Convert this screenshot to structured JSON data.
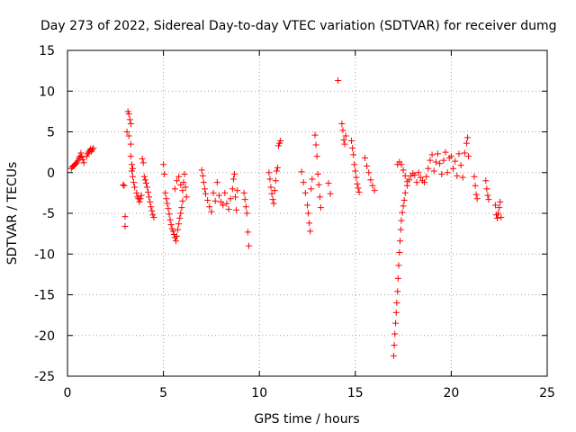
{
  "chart_data": {
    "type": "scatter",
    "title": "Day 273 of 2022, Sidereal Day-to-day VTEC variation (SDTVAR) for receiver dumg",
    "xlabel": "GPS time / hours",
    "ylabel": "SDTVAR / TECUs",
    "xlim": [
      0,
      25
    ],
    "ylim": [
      -25,
      15
    ],
    "xticks": [
      0,
      5,
      10,
      15,
      20,
      25
    ],
    "yticks": [
      -25,
      -20,
      -15,
      -10,
      -5,
      0,
      5,
      10,
      15
    ],
    "grid": true,
    "marker": "+",
    "color": "#ff0000",
    "series": [
      {
        "name": "SDTVAR",
        "points": [
          [
            0.2,
            0.5
          ],
          [
            0.25,
            0.7
          ],
          [
            0.3,
            0.8
          ],
          [
            0.35,
            0.9
          ],
          [
            0.4,
            1.0
          ],
          [
            0.45,
            1.1
          ],
          [
            0.5,
            1.3
          ],
          [
            0.55,
            1.5
          ],
          [
            0.6,
            1.8
          ],
          [
            0.65,
            2.0
          ],
          [
            0.7,
            2.4
          ],
          [
            0.75,
            1.9
          ],
          [
            0.8,
            1.6
          ],
          [
            0.85,
            1.2
          ],
          [
            1.0,
            2.0
          ],
          [
            1.05,
            2.3
          ],
          [
            1.1,
            2.5
          ],
          [
            1.15,
            2.7
          ],
          [
            1.2,
            2.9
          ],
          [
            1.25,
            2.6
          ],
          [
            1.3,
            2.8
          ],
          [
            1.35,
            3.0
          ],
          [
            2.9,
            -1.5
          ],
          [
            2.95,
            -1.6
          ],
          [
            3.0,
            -5.4
          ],
          [
            3.0,
            -6.6
          ],
          [
            3.1,
            5.0
          ],
          [
            3.15,
            7.5
          ],
          [
            3.2,
            7.2
          ],
          [
            3.2,
            4.5
          ],
          [
            3.25,
            6.5
          ],
          [
            3.3,
            6.0
          ],
          [
            3.3,
            3.5
          ],
          [
            3.3,
            2.0
          ],
          [
            3.35,
            1.0
          ],
          [
            3.35,
            0.2
          ],
          [
            3.4,
            0.5
          ],
          [
            3.4,
            -0.5
          ],
          [
            3.45,
            -1.2
          ],
          [
            3.5,
            -1.8
          ],
          [
            3.6,
            -2.5
          ],
          [
            3.65,
            -3.0
          ],
          [
            3.7,
            -3.2
          ],
          [
            3.75,
            -3.6
          ],
          [
            3.8,
            -3.2
          ],
          [
            3.85,
            -2.8
          ],
          [
            3.9,
            1.7
          ],
          [
            3.95,
            1.2
          ],
          [
            4.0,
            -0.5
          ],
          [
            4.05,
            -0.9
          ],
          [
            4.1,
            -1.3
          ],
          [
            4.15,
            -1.8
          ],
          [
            4.2,
            -2.4
          ],
          [
            4.25,
            -3.0
          ],
          [
            4.3,
            -3.6
          ],
          [
            4.35,
            -4.2
          ],
          [
            4.4,
            -4.7
          ],
          [
            4.45,
            -5.2
          ],
          [
            4.5,
            -5.5
          ],
          [
            5.0,
            1.0
          ],
          [
            5.05,
            -0.2
          ],
          [
            5.1,
            -2.5
          ],
          [
            5.15,
            -3.2
          ],
          [
            5.2,
            -3.8
          ],
          [
            5.25,
            -4.4
          ],
          [
            5.3,
            -5.1
          ],
          [
            5.35,
            -5.8
          ],
          [
            5.4,
            -6.4
          ],
          [
            5.45,
            -6.9
          ],
          [
            5.5,
            -7.2
          ],
          [
            5.55,
            -7.6
          ],
          [
            5.6,
            -8.0
          ],
          [
            5.65,
            -8.4
          ],
          [
            5.7,
            -7.8
          ],
          [
            5.75,
            -7.0
          ],
          [
            5.8,
            -6.3
          ],
          [
            5.85,
            -5.6
          ],
          [
            5.9,
            -5.0
          ],
          [
            5.95,
            -4.3
          ],
          [
            6.0,
            -3.5
          ],
          [
            5.6,
            -2.0
          ],
          [
            5.7,
            -1.0
          ],
          [
            5.8,
            -0.5
          ],
          [
            5.9,
            -1.5
          ],
          [
            6.0,
            -2.2
          ],
          [
            6.05,
            -1.2
          ],
          [
            6.1,
            -0.2
          ],
          [
            6.15,
            -1.8
          ],
          [
            6.2,
            -3.0
          ],
          [
            7.0,
            0.3
          ],
          [
            7.05,
            -0.4
          ],
          [
            7.1,
            -1.2
          ],
          [
            7.15,
            -2.0
          ],
          [
            7.2,
            -2.6
          ],
          [
            7.3,
            -3.4
          ],
          [
            7.4,
            -4.2
          ],
          [
            7.5,
            -4.8
          ],
          [
            7.6,
            -2.5
          ],
          [
            7.7,
            -3.5
          ],
          [
            7.8,
            -1.2
          ],
          [
            7.9,
            -2.8
          ],
          [
            8.0,
            -3.6
          ],
          [
            8.1,
            -4.0
          ],
          [
            8.2,
            -2.5
          ],
          [
            8.3,
            -3.8
          ],
          [
            8.4,
            -4.5
          ],
          [
            8.5,
            -3.2
          ],
          [
            8.6,
            -2.0
          ],
          [
            8.65,
            -0.8
          ],
          [
            8.7,
            -0.2
          ],
          [
            8.75,
            -3.0
          ],
          [
            8.8,
            -4.6
          ],
          [
            8.85,
            -2.2
          ],
          [
            9.2,
            -2.5
          ],
          [
            9.25,
            -3.3
          ],
          [
            9.3,
            -4.2
          ],
          [
            9.35,
            -5.0
          ],
          [
            9.4,
            -7.3
          ],
          [
            9.45,
            -9.0
          ],
          [
            10.5,
            0.0
          ],
          [
            10.55,
            -0.8
          ],
          [
            10.6,
            -1.8
          ],
          [
            10.65,
            -2.6
          ],
          [
            10.7,
            -3.3
          ],
          [
            10.75,
            -3.8
          ],
          [
            10.8,
            -2.2
          ],
          [
            10.85,
            -1.0
          ],
          [
            10.9,
            0.2
          ],
          [
            10.95,
            0.6
          ],
          [
            11.0,
            3.3
          ],
          [
            11.05,
            3.6
          ],
          [
            11.1,
            3.9
          ],
          [
            12.2,
            0.1
          ],
          [
            12.3,
            -1.2
          ],
          [
            12.4,
            -2.5
          ],
          [
            12.5,
            -4.0
          ],
          [
            12.55,
            -5.0
          ],
          [
            12.6,
            -6.2
          ],
          [
            12.65,
            -7.2
          ],
          [
            12.7,
            -2.0
          ],
          [
            12.75,
            -0.8
          ],
          [
            12.9,
            4.6
          ],
          [
            12.95,
            3.4
          ],
          [
            13.0,
            2.0
          ],
          [
            13.05,
            -0.2
          ],
          [
            13.1,
            -1.5
          ],
          [
            13.15,
            -3.0
          ],
          [
            13.2,
            -4.3
          ],
          [
            13.6,
            -1.3
          ],
          [
            13.7,
            -2.6
          ],
          [
            14.1,
            11.3
          ],
          [
            14.3,
            6.0
          ],
          [
            14.35,
            5.2
          ],
          [
            14.4,
            4.0
          ],
          [
            14.45,
            3.5
          ],
          [
            14.5,
            4.5
          ],
          [
            14.8,
            3.9
          ],
          [
            14.85,
            3.0
          ],
          [
            14.9,
            2.2
          ],
          [
            14.95,
            1.0
          ],
          [
            15.0,
            0.2
          ],
          [
            15.05,
            -0.6
          ],
          [
            15.1,
            -1.4
          ],
          [
            15.15,
            -1.9
          ],
          [
            15.2,
            -2.4
          ],
          [
            15.5,
            1.8
          ],
          [
            15.6,
            0.8
          ],
          [
            15.7,
            0.0
          ],
          [
            15.8,
            -0.9
          ],
          [
            15.9,
            -1.6
          ],
          [
            16.0,
            -2.2
          ],
          [
            17.0,
            -22.5
          ],
          [
            17.03,
            -21.2
          ],
          [
            17.06,
            -19.8
          ],
          [
            17.1,
            -18.5
          ],
          [
            17.13,
            -17.2
          ],
          [
            17.16,
            -16.0
          ],
          [
            17.2,
            -14.6
          ],
          [
            17.23,
            -13.0
          ],
          [
            17.26,
            -11.4
          ],
          [
            17.3,
            -9.8
          ],
          [
            17.33,
            -8.4
          ],
          [
            17.37,
            -7.0
          ],
          [
            17.4,
            -5.9
          ],
          [
            17.45,
            -4.9
          ],
          [
            17.5,
            -4.1
          ],
          [
            17.55,
            -3.4
          ],
          [
            17.6,
            -2.5
          ],
          [
            17.7,
            -1.6
          ],
          [
            17.8,
            -0.9
          ],
          [
            17.9,
            -0.4
          ],
          [
            18.0,
            -0.1
          ],
          [
            18.1,
            -0.3
          ],
          [
            18.2,
            -1.2
          ],
          [
            17.2,
            1.0
          ],
          [
            17.3,
            1.3
          ],
          [
            17.4,
            1.0
          ],
          [
            17.5,
            0.3
          ],
          [
            17.6,
            -0.4
          ],
          [
            17.7,
            -1.1
          ],
          [
            18.3,
            0.0
          ],
          [
            18.4,
            -0.6
          ],
          [
            18.5,
            -1.0
          ],
          [
            18.6,
            -1.2
          ],
          [
            18.7,
            -0.5
          ],
          [
            18.8,
            0.5
          ],
          [
            18.9,
            1.5
          ],
          [
            19.0,
            2.2
          ],
          [
            19.1,
            0.2
          ],
          [
            19.2,
            1.3
          ],
          [
            19.3,
            2.3
          ],
          [
            19.4,
            1.1
          ],
          [
            19.5,
            -0.2
          ],
          [
            19.6,
            1.5
          ],
          [
            19.7,
            2.5
          ],
          [
            19.8,
            0.0
          ],
          [
            19.9,
            1.8
          ],
          [
            20.0,
            2.0
          ],
          [
            20.1,
            0.5
          ],
          [
            20.2,
            1.4
          ],
          [
            20.3,
            -0.4
          ],
          [
            20.4,
            2.3
          ],
          [
            20.5,
            0.9
          ],
          [
            20.6,
            -0.6
          ],
          [
            20.7,
            2.4
          ],
          [
            20.8,
            3.6
          ],
          [
            20.85,
            4.3
          ],
          [
            20.9,
            2.0
          ],
          [
            21.2,
            -0.5
          ],
          [
            21.25,
            -1.6
          ],
          [
            21.3,
            -2.7
          ],
          [
            21.35,
            -3.2
          ],
          [
            21.8,
            -1.0
          ],
          [
            21.85,
            -2.0
          ],
          [
            21.9,
            -2.8
          ],
          [
            21.95,
            -3.3
          ],
          [
            22.3,
            -4.0
          ],
          [
            22.35,
            -5.2
          ],
          [
            22.4,
            -5.6
          ],
          [
            22.45,
            -5.0
          ],
          [
            22.5,
            -4.3
          ],
          [
            22.55,
            -3.6
          ],
          [
            22.6,
            -5.5
          ]
        ]
      }
    ]
  }
}
